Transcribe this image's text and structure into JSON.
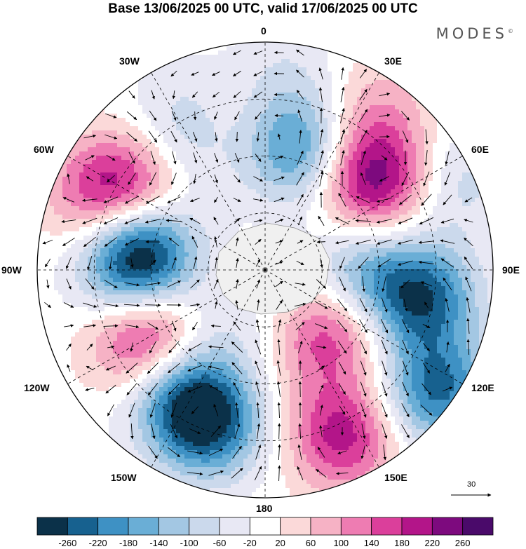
{
  "header": {
    "title": "Base 13/06/2025 00 UTC, valid 17/06/2025 00 UTC",
    "brand": "MODES",
    "brand_mark": "©"
  },
  "map": {
    "projection": "south-polar-stereographic",
    "longitude_labels": [
      {
        "id": "0",
        "text": "0"
      },
      {
        "id": "30e",
        "text": "30E"
      },
      {
        "id": "60e",
        "text": "60E"
      },
      {
        "id": "90e",
        "text": "90E"
      },
      {
        "id": "120e",
        "text": "120E"
      },
      {
        "id": "150e",
        "text": "150E"
      },
      {
        "id": "180",
        "text": "180"
      },
      {
        "id": "150w",
        "text": "150W"
      },
      {
        "id": "120w",
        "text": "120W"
      },
      {
        "id": "90w",
        "text": "90W"
      },
      {
        "id": "60w",
        "text": "60W"
      },
      {
        "id": "30w",
        "text": "30W"
      }
    ],
    "anomaly_centers": [
      {
        "lon": -40,
        "r": 0.62,
        "value": -90
      },
      {
        "lon": -25,
        "r": 0.78,
        "value": -60
      },
      {
        "lon": 5,
        "r": 0.85,
        "value": -60
      },
      {
        "lon": -80,
        "r": 0.55,
        "value": -280
      },
      {
        "lon": -95,
        "r": 0.6,
        "value": -100
      },
      {
        "lon": -55,
        "r": 0.65,
        "value": 170
      },
      {
        "lon": -65,
        "r": 0.8,
        "value": 150
      },
      {
        "lon": -10,
        "r": 0.7,
        "value": 40
      },
      {
        "lon": 15,
        "r": 0.55,
        "value": -200
      },
      {
        "lon": 50,
        "r": 0.62,
        "value": 250
      },
      {
        "lon": 35,
        "r": 0.85,
        "value": 80
      },
      {
        "lon": 65,
        "r": 0.92,
        "value": -80
      },
      {
        "lon": 95,
        "r": 0.42,
        "value": -150
      },
      {
        "lon": 100,
        "r": 0.7,
        "value": -240
      },
      {
        "lon": 130,
        "r": 0.4,
        "value": 170
      },
      {
        "lon": 155,
        "r": 0.8,
        "value": 200
      },
      {
        "lon": 125,
        "r": 0.92,
        "value": -230
      },
      {
        "lon": -160,
        "r": 0.72,
        "value": -240
      },
      {
        "lon": -120,
        "r": 0.6,
        "value": 230
      },
      {
        "lon": -140,
        "r": 0.35,
        "value": -30
      },
      {
        "lon": 180,
        "r": 0.28,
        "value": -60
      },
      {
        "lon": -145,
        "r": 0.65,
        "value": -180
      },
      {
        "lon": 165,
        "r": 0.35,
        "value": 60
      }
    ],
    "arrow_reference": {
      "value": "30"
    }
  },
  "colorbar": {
    "levels": [
      "-260",
      "-220",
      "-180",
      "-140",
      "-100",
      "-60",
      "-20",
      "20",
      "60",
      "100",
      "140",
      "180",
      "220",
      "260"
    ],
    "colors": [
      "#0b3149",
      "#17618f",
      "#3e91c4",
      "#6aaed6",
      "#a3c7e3",
      "#cbd9ec",
      "#e8e8f4",
      "#ffffff",
      "#fbd9d9",
      "#f6b2c5",
      "#ee7cb2",
      "#db3f9b",
      "#b31589",
      "#7d0a7e",
      "#4a0a6a"
    ]
  },
  "colors": {
    "land": "#f0f0f0",
    "frame": "#000000"
  }
}
